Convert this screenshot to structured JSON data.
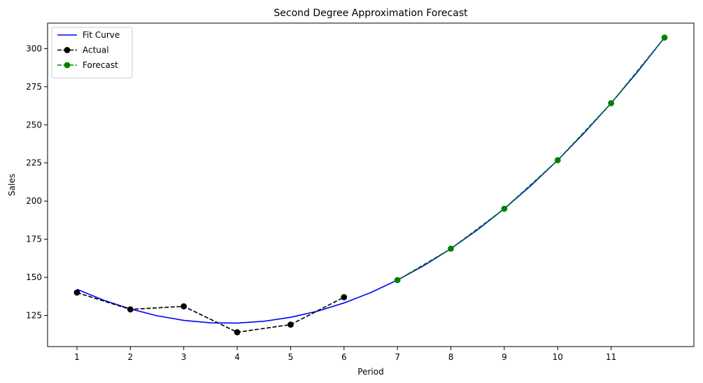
{
  "chart_data": {
    "type": "line",
    "title": "Second Degree Approximation Forecast",
    "xlabel": "Period",
    "ylabel": "Sales",
    "xlim": [
      0.45,
      12.55
    ],
    "ylim": [
      104.6,
      316.7
    ],
    "x_ticks": [
      1,
      2,
      3,
      4,
      5,
      6,
      7,
      8,
      9,
      10,
      11
    ],
    "y_ticks": [
      125,
      150,
      175,
      200,
      225,
      250,
      275,
      300
    ],
    "grid": false,
    "legend_position": "upper-left",
    "series": [
      {
        "name": "Fit Curve",
        "style": "solid",
        "marker": "none",
        "color": "#0000ff",
        "x": [
          1,
          1.5,
          2,
          2.5,
          3,
          3.5,
          4,
          4.5,
          5,
          5.5,
          6,
          6.5,
          7,
          7.5,
          8,
          8.5,
          9,
          9.5,
          10,
          10.5,
          11,
          11.5,
          12
        ],
        "values": [
          142.2,
          135.0,
          129.3,
          124.8,
          121.8,
          120.2,
          120.0,
          121.2,
          123.8,
          127.8,
          133.2,
          140.0,
          148.2,
          157.8,
          168.8,
          181.2,
          195.0,
          210.2,
          226.8,
          244.8,
          264.2,
          285.0,
          307.2
        ]
      },
      {
        "name": "Actual",
        "style": "dashed",
        "marker": "circle",
        "color": "#000000",
        "x": [
          1,
          2,
          3,
          4,
          5,
          6
        ],
        "values": [
          140,
          129,
          131,
          114,
          119,
          137
        ]
      },
      {
        "name": "Forecast",
        "style": "dashed",
        "marker": "circle",
        "color": "#008000",
        "x": [
          7,
          8,
          9,
          10,
          11,
          12
        ],
        "values": [
          148.2,
          168.8,
          195.0,
          226.8,
          264.2,
          307.2
        ]
      }
    ]
  }
}
